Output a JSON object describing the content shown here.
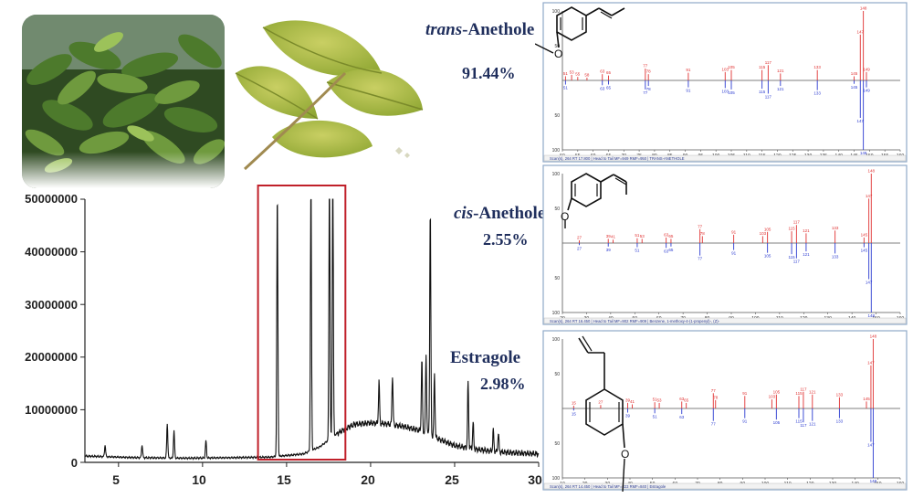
{
  "compounds": [
    {
      "name_prefix": "trans",
      "name_suffix": "-Anethole",
      "percent": "91.44%"
    },
    {
      "name_prefix": "cis",
      "name_suffix": "-Anethole",
      "percent": "2.55%"
    },
    {
      "name_prefix": "",
      "name_suffix": "Estragole",
      "percent": "2.98%"
    }
  ],
  "chart_data": {
    "type": "line",
    "title": "",
    "xlabel": "",
    "ylabel": "",
    "xlim": [
      3,
      30
    ],
    "ylim": [
      0,
      50000000
    ],
    "x_ticks": [
      "5",
      "10",
      "15",
      "20",
      "25",
      "30"
    ],
    "y_ticks": [
      "0",
      "10000000",
      "20000000",
      "30000000",
      "40000000",
      "50000000"
    ],
    "highlight_range": [
      13.3,
      18.5
    ],
    "highlight_color": "#c0202a",
    "baseline": [
      [
        3,
        1200000
      ],
      [
        6,
        900000
      ],
      [
        9,
        800000
      ],
      [
        12,
        900000
      ],
      [
        14,
        1000000
      ],
      [
        16,
        1600000
      ],
      [
        17,
        3000000
      ],
      [
        18,
        5500000
      ],
      [
        19,
        7200000
      ],
      [
        20,
        7500000
      ],
      [
        21,
        7300000
      ],
      [
        22,
        6800000
      ],
      [
        23,
        6000000
      ],
      [
        24,
        4500000
      ],
      [
        25,
        3200000
      ],
      [
        26,
        2600000
      ],
      [
        27,
        2200000
      ],
      [
        28,
        1900000
      ],
      [
        30,
        1600000
      ]
    ],
    "peaks": [
      {
        "rt": 4.2,
        "height": 2200000
      },
      {
        "rt": 6.4,
        "height": 2400000
      },
      {
        "rt": 7.9,
        "height": 6500000
      },
      {
        "rt": 8.3,
        "height": 5200000
      },
      {
        "rt": 10.2,
        "height": 3300000
      },
      {
        "rt": 14.45,
        "height": 50000000
      },
      {
        "rt": 16.45,
        "height": 50000000
      },
      {
        "rt": 17.55,
        "height": 50000000
      },
      {
        "rt": 17.75,
        "height": 50000000
      },
      {
        "rt": 20.5,
        "height": 8000000
      },
      {
        "rt": 21.3,
        "height": 9500000
      },
      {
        "rt": 23.05,
        "height": 13500000
      },
      {
        "rt": 23.3,
        "height": 15000000
      },
      {
        "rt": 23.55,
        "height": 43000000
      },
      {
        "rt": 23.8,
        "height": 12000000
      },
      {
        "rt": 25.8,
        "height": 12500000
      },
      {
        "rt": 26.1,
        "height": 5000000
      },
      {
        "rt": 27.3,
        "height": 4000000
      },
      {
        "rt": 27.6,
        "height": 3600000
      }
    ]
  },
  "spectra": [
    {
      "xlim": [
        50,
        160
      ],
      "x_ticks": [
        "50",
        "55",
        "60",
        "65",
        "70",
        "75",
        "80",
        "85",
        "90",
        "95",
        "100",
        "105",
        "110",
        "115",
        "120",
        "125",
        "130",
        "135",
        "140",
        "145",
        "150",
        "155",
        "160"
      ],
      "y_ticks_top": [
        "100",
        "50"
      ],
      "y_ticks_bottom": [
        "50",
        "100"
      ],
      "sample": [
        [
          51,
          6
        ],
        [
          53,
          8
        ],
        [
          55,
          5
        ],
        [
          58,
          4
        ],
        [
          63,
          9
        ],
        [
          65,
          7
        ],
        [
          77,
          17
        ],
        [
          78,
          9
        ],
        [
          91,
          11
        ],
        [
          103,
          12
        ],
        [
          105,
          15
        ],
        [
          115,
          15
        ],
        [
          117,
          22
        ],
        [
          121,
          10
        ],
        [
          133,
          15
        ],
        [
          145,
          6
        ],
        [
          147,
          66
        ],
        [
          148,
          100
        ],
        [
          149,
          12
        ]
      ],
      "library": [
        [
          51,
          6
        ],
        [
          63,
          7
        ],
        [
          65,
          6
        ],
        [
          77,
          13
        ],
        [
          78,
          8
        ],
        [
          91,
          10
        ],
        [
          103,
          11
        ],
        [
          105,
          13
        ],
        [
          115,
          12
        ],
        [
          117,
          19
        ],
        [
          121,
          8
        ],
        [
          133,
          14
        ],
        [
          145,
          5
        ],
        [
          147,
          54
        ],
        [
          148,
          100
        ],
        [
          149,
          10
        ]
      ],
      "footer": "Scan(s), 264  RT 17.800  |  Head to Tail MF=949 RMF=950  |  TRANS-ANETHOLE"
    },
    {
      "xlim": [
        20,
        160
      ],
      "x_ticks": [
        "20",
        "30",
        "40",
        "50",
        "60",
        "70",
        "80",
        "90",
        "100",
        "110",
        "120",
        "130",
        "140",
        "150",
        "160"
      ],
      "y_ticks_top": [
        "100",
        "50"
      ],
      "y_ticks_bottom": [
        "50",
        "100"
      ],
      "sample": [
        [
          27,
          4
        ],
        [
          39,
          6
        ],
        [
          41,
          5
        ],
        [
          51,
          7
        ],
        [
          53,
          6
        ],
        [
          63,
          8
        ],
        [
          65,
          6
        ],
        [
          77,
          20
        ],
        [
          78,
          10
        ],
        [
          91,
          12
        ],
        [
          103,
          10
        ],
        [
          105,
          16
        ],
        [
          115,
          17
        ],
        [
          117,
          26
        ],
        [
          121,
          14
        ],
        [
          133,
          18
        ],
        [
          145,
          8
        ],
        [
          147,
          64
        ],
        [
          148,
          100
        ]
      ],
      "library": [
        [
          27,
          3
        ],
        [
          39,
          5
        ],
        [
          51,
          6
        ],
        [
          63,
          7
        ],
        [
          65,
          5
        ],
        [
          77,
          18
        ],
        [
          91,
          10
        ],
        [
          105,
          14
        ],
        [
          115,
          16
        ],
        [
          117,
          22
        ],
        [
          121,
          12
        ],
        [
          133,
          15
        ],
        [
          145,
          6
        ],
        [
          147,
          52
        ],
        [
          148,
          100
        ]
      ],
      "footer": "Scan(s), 264  RT 16.450  |  Head to Tail MF=902 RMF=909  |  Benzene, 1-methoxy-4-(1-propenyl)-, (Z)-"
    },
    {
      "xlim": [
        10,
        160
      ],
      "x_ticks": [
        "10",
        "20",
        "30",
        "40",
        "50",
        "60",
        "70",
        "80",
        "90",
        "100",
        "110",
        "120",
        "130",
        "140",
        "150",
        "160"
      ],
      "y_ticks_top": [
        "100",
        "50"
      ],
      "y_ticks_bottom": [
        "50",
        "100"
      ],
      "sample": [
        [
          15,
          4
        ],
        [
          27,
          5
        ],
        [
          39,
          8
        ],
        [
          41,
          6
        ],
        [
          51,
          9
        ],
        [
          53,
          8
        ],
        [
          63,
          10
        ],
        [
          65,
          8
        ],
        [
          77,
          22
        ],
        [
          78,
          12
        ],
        [
          91,
          18
        ],
        [
          103,
          13
        ],
        [
          105,
          20
        ],
        [
          115,
          18
        ],
        [
          117,
          24
        ],
        [
          121,
          20
        ],
        [
          133,
          16
        ],
        [
          145,
          10
        ],
        [
          147,
          62
        ],
        [
          148,
          100
        ]
      ],
      "library": [
        [
          15,
          3
        ],
        [
          39,
          6
        ],
        [
          51,
          7
        ],
        [
          63,
          8
        ],
        [
          77,
          18
        ],
        [
          91,
          14
        ],
        [
          105,
          16
        ],
        [
          115,
          14
        ],
        [
          117,
          20
        ],
        [
          121,
          18
        ],
        [
          133,
          14
        ],
        [
          147,
          48
        ],
        [
          148,
          100
        ]
      ],
      "footer": "Scan(s), 264  RT 14.450  |  Head to Tail MF=823 RMF=840  |  Estragole"
    }
  ]
}
